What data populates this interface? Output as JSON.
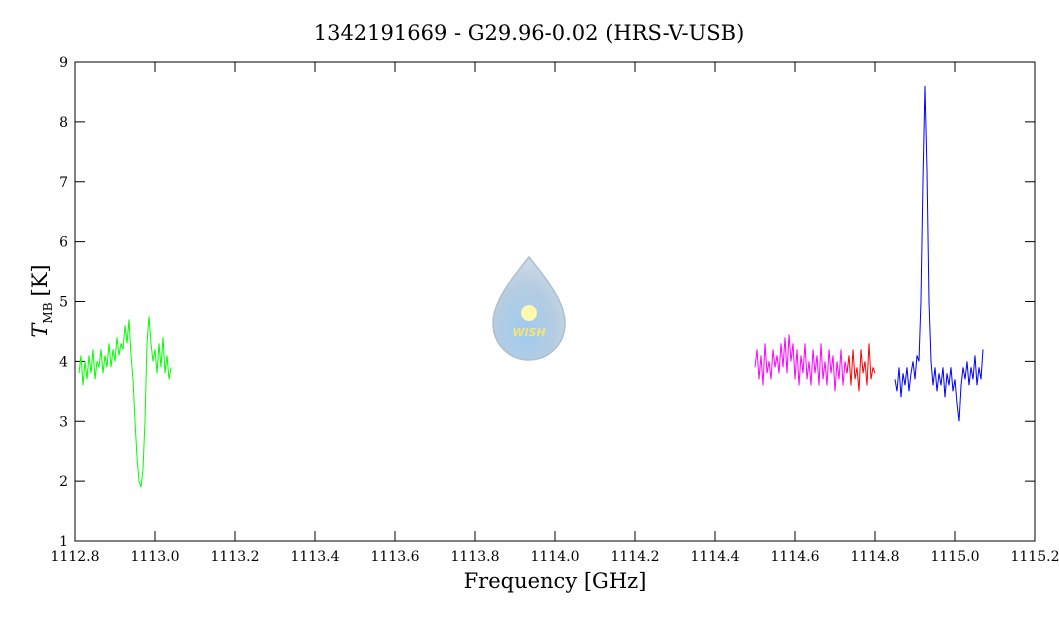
{
  "chart_data": {
    "type": "line",
    "title": "1342191669 - G29.96-0.02 (HRS-V-USB)",
    "xlabel": "Frequency [GHz]",
    "ylabel": [
      "T",
      "MB",
      "[K]"
    ],
    "annotation": "WISH",
    "xlim": [
      1112.8,
      1115.2
    ],
    "ylim": [
      1,
      9
    ],
    "xticks": [
      1112.8,
      {
        "value": 1113,
        "label": "1113.0"
      },
      1113.2,
      1113.4,
      1113.6,
      1113.8,
      {
        "value": 1114,
        "label": "1114.0"
      },
      1114.2,
      1114.4,
      1114.6,
      1114.8,
      {
        "value": 1115,
        "label": "1115.0"
      },
      1115.2
    ],
    "yticks": [
      1,
      2,
      3,
      4,
      5,
      6,
      7,
      8,
      9
    ],
    "series": [
      {
        "color": "#00ff00",
        "x": [
          1112.81,
          1112.815,
          1112.82,
          1112.825,
          1112.83,
          1112.835,
          1112.84,
          1112.845,
          1112.85,
          1112.855,
          1112.86,
          1112.865,
          1112.87,
          1112.875,
          1112.88,
          1112.885,
          1112.89,
          1112.895,
          1112.9,
          1112.905,
          1112.91,
          1112.915,
          1112.92,
          1112.925,
          1112.93,
          1112.935,
          1112.94,
          1112.945,
          1112.95,
          1112.955,
          1112.96,
          1112.965,
          1112.97,
          1112.975,
          1112.98,
          1112.985,
          1112.99,
          1112.995,
          1113.0,
          1113.005,
          1113.01,
          1113.015,
          1113.02,
          1113.025,
          1113.03,
          1113.035,
          1113.04
        ],
        "values": [
          3.8,
          4.1,
          3.6,
          4.0,
          3.7,
          4.1,
          3.8,
          4.2,
          3.7,
          4.0,
          3.9,
          4.2,
          3.8,
          4.1,
          3.9,
          4.3,
          3.9,
          4.2,
          4.0,
          4.4,
          4.1,
          4.3,
          4.2,
          4.6,
          4.3,
          4.7,
          4.1,
          3.7,
          3.0,
          2.4,
          2.0,
          1.9,
          2.2,
          3.0,
          4.3,
          4.75,
          4.3,
          4.0,
          4.2,
          3.8,
          4.3,
          3.9,
          4.4,
          3.8,
          4.1,
          3.7,
          3.9
        ]
      },
      {
        "color": "#ff00ff",
        "x": [
          1114.5,
          1114.505,
          1114.51,
          1114.515,
          1114.52,
          1114.525,
          1114.53,
          1114.535,
          1114.54,
          1114.545,
          1114.55,
          1114.555,
          1114.56,
          1114.565,
          1114.57,
          1114.575,
          1114.58,
          1114.585,
          1114.59,
          1114.595,
          1114.6,
          1114.605,
          1114.61,
          1114.615,
          1114.62,
          1114.625,
          1114.63,
          1114.635,
          1114.64,
          1114.645,
          1114.65,
          1114.655,
          1114.66,
          1114.665,
          1114.67,
          1114.675,
          1114.68,
          1114.685,
          1114.69,
          1114.695,
          1114.7,
          1114.705,
          1114.71,
          1114.715,
          1114.72,
          1114.725,
          1114.73
        ],
        "values": [
          3.9,
          4.2,
          3.7,
          4.1,
          3.6,
          4.3,
          3.8,
          4.0,
          3.7,
          4.2,
          3.9,
          4.1,
          3.8,
          4.3,
          3.9,
          4.4,
          3.8,
          4.45,
          4.0,
          4.3,
          3.7,
          4.2,
          3.6,
          4.1,
          3.8,
          4.3,
          3.7,
          4.0,
          3.6,
          4.2,
          3.8,
          4.1,
          3.6,
          4.3,
          3.7,
          4.0,
          3.6,
          4.2,
          3.8,
          4.1,
          3.5,
          4.0,
          3.7,
          4.2,
          3.6,
          4.0,
          3.8
        ]
      },
      {
        "color": "#ff0000",
        "x": [
          1114.73,
          1114.735,
          1114.74,
          1114.745,
          1114.75,
          1114.755,
          1114.76,
          1114.765,
          1114.77,
          1114.775,
          1114.78,
          1114.785,
          1114.79,
          1114.795,
          1114.8
        ],
        "values": [
          3.8,
          4.1,
          3.6,
          4.2,
          3.7,
          3.9,
          3.5,
          4.2,
          3.8,
          4.0,
          3.6,
          4.3,
          3.7,
          3.9,
          3.8
        ]
      },
      {
        "color": "#0000ff",
        "x": [
          1114.85,
          1114.855,
          1114.86,
          1114.865,
          1114.87,
          1114.875,
          1114.88,
          1114.885,
          1114.89,
          1114.895,
          1114.9,
          1114.905,
          1114.91,
          1114.915,
          1114.92,
          1114.925,
          1114.93,
          1114.935,
          1114.94,
          1114.945,
          1114.95,
          1114.955,
          1114.96,
          1114.965,
          1114.97,
          1114.975,
          1114.98,
          1114.985,
          1114.99,
          1114.995,
          1115.0,
          1115.005,
          1115.01,
          1115.015,
          1115.02,
          1115.025,
          1115.03,
          1115.035,
          1115.04,
          1115.045,
          1115.05,
          1115.055,
          1115.06,
          1115.065,
          1115.07
        ],
        "values": [
          3.7,
          3.5,
          3.9,
          3.4,
          3.8,
          3.6,
          3.9,
          3.5,
          3.8,
          4.0,
          3.7,
          4.1,
          4.0,
          5.0,
          7.0,
          8.6,
          7.2,
          5.0,
          4.0,
          3.6,
          3.9,
          3.5,
          3.8,
          3.6,
          3.9,
          3.4,
          3.8,
          3.6,
          3.9,
          3.5,
          3.7,
          3.3,
          3.0,
          3.6,
          3.9,
          3.7,
          4.0,
          3.6,
          3.9,
          3.7,
          4.1,
          3.6,
          3.9,
          3.7,
          4.2
        ]
      }
    ]
  }
}
